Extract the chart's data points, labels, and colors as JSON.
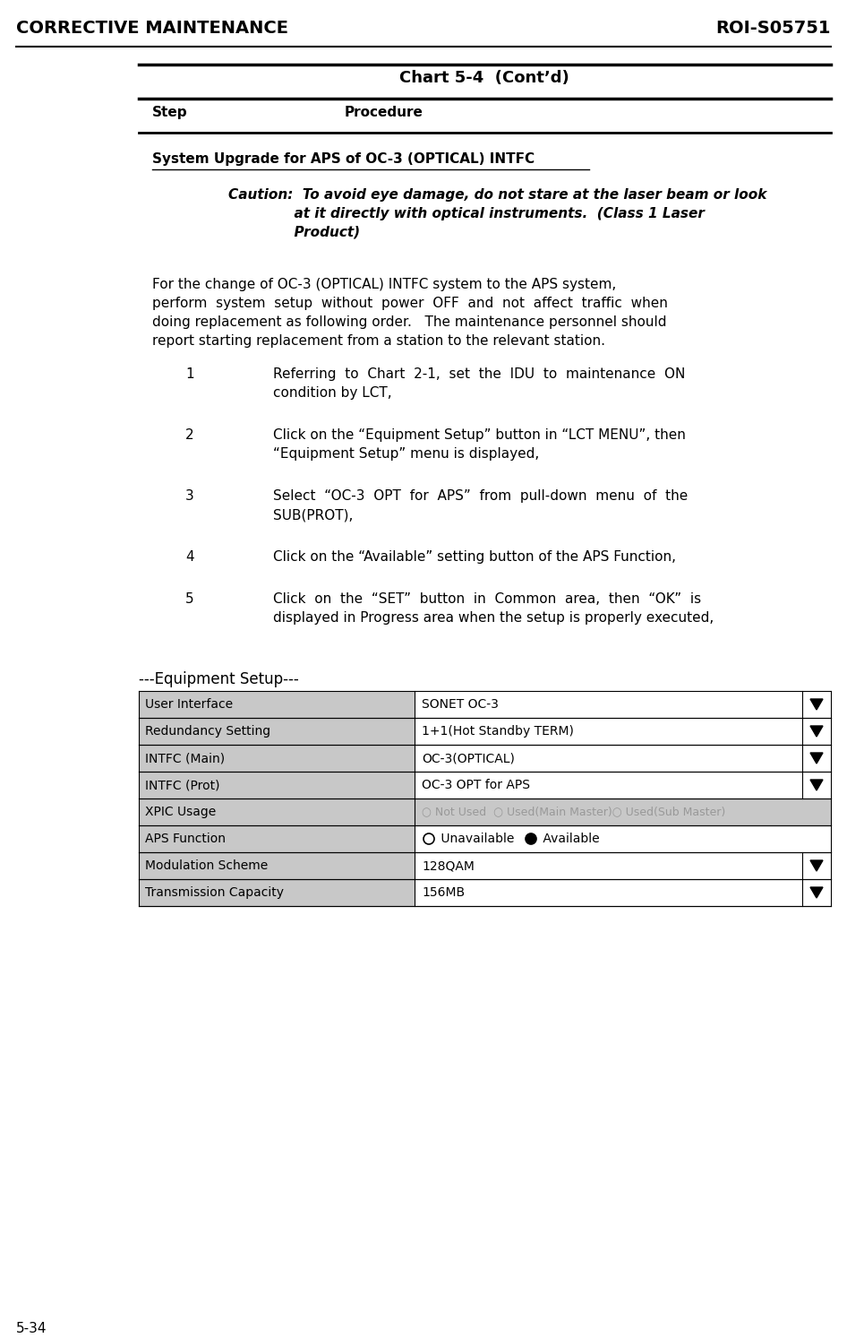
{
  "header_left": "CORRECTIVE MAINTENANCE",
  "header_right": "ROI-S05751",
  "footer_left": "5-34",
  "chart_title": "Chart 5-4  (Cont’d)",
  "col_step": "Step",
  "col_procedure": "Procedure",
  "section_title": "System Upgrade for APS of OC-3 (OPTICAL) INTFC ",
  "caution_line1": "Caution:  To avoid eye damage, do not stare at the laser beam or look",
  "caution_line2": "              at it directly with optical instruments.  (Class 1 Laser",
  "caution_line3": "              Product)",
  "intro_lines": [
    "For the change of OC-3 (OPTICAL) INTFC system to the APS system,",
    "perform  system  setup  without  power  OFF  and  not  affect  traffic  when",
    "doing replacement as following order.   The maintenance personnel should",
    "report starting replacement from a station to the relevant station."
  ],
  "steps": [
    {
      "num": "1",
      "lines": [
        "Referring  to  Chart  2-1,  set  the  IDU  to  maintenance  ON",
        "condition by LCT,"
      ]
    },
    {
      "num": "2",
      "lines": [
        "Click on the “Equipment Setup” button in “LCT MENU”, then",
        "“Equipment Setup” menu is displayed,"
      ]
    },
    {
      "num": "3",
      "lines": [
        "Select  “OC-3  OPT  for  APS”  from  pull-down  menu  of  the",
        "SUB(PROT),"
      ]
    },
    {
      "num": "4",
      "lines": [
        "Click on the “Available” setting button of the APS Function,"
      ]
    },
    {
      "num": "5",
      "lines": [
        "Click  on  the  “SET”  button  in  Common  area,  then  “OK”  is",
        "displayed in Progress area when the setup is properly executed,"
      ]
    }
  ],
  "table_title": "---Equipment Setup---",
  "table_rows": [
    {
      "label": "User Interface",
      "value": "SONET OC-3",
      "has_arrow": true,
      "gray_value": false,
      "special": null
    },
    {
      "label": "Redundancy Setting",
      "value": "1+1(Hot Standby TERM)",
      "has_arrow": true,
      "gray_value": false,
      "special": null
    },
    {
      "label": "INTFC (Main)",
      "value": "OC-3(OPTICAL)",
      "has_arrow": true,
      "gray_value": false,
      "special": null
    },
    {
      "label": "INTFC (Prot)",
      "value": "OC-3 OPT for APS",
      "has_arrow": true,
      "gray_value": false,
      "special": null
    },
    {
      "label": "XPIC Usage",
      "value": "○ Not Used  ○ Used(Main Master)○ Used(Sub Master)",
      "has_arrow": false,
      "gray_value": true,
      "special": "xpic"
    },
    {
      "label": "APS Function",
      "value": "",
      "has_arrow": false,
      "gray_value": false,
      "special": "aps"
    },
    {
      "label": "Modulation Scheme",
      "value": "128QAM",
      "has_arrow": true,
      "gray_value": false,
      "special": null
    },
    {
      "label": "Transmission Capacity",
      "value": "156MB",
      "has_arrow": true,
      "gray_value": false,
      "special": null
    }
  ],
  "bg_color": "#ffffff",
  "table_label_bg": "#c8c8c8"
}
